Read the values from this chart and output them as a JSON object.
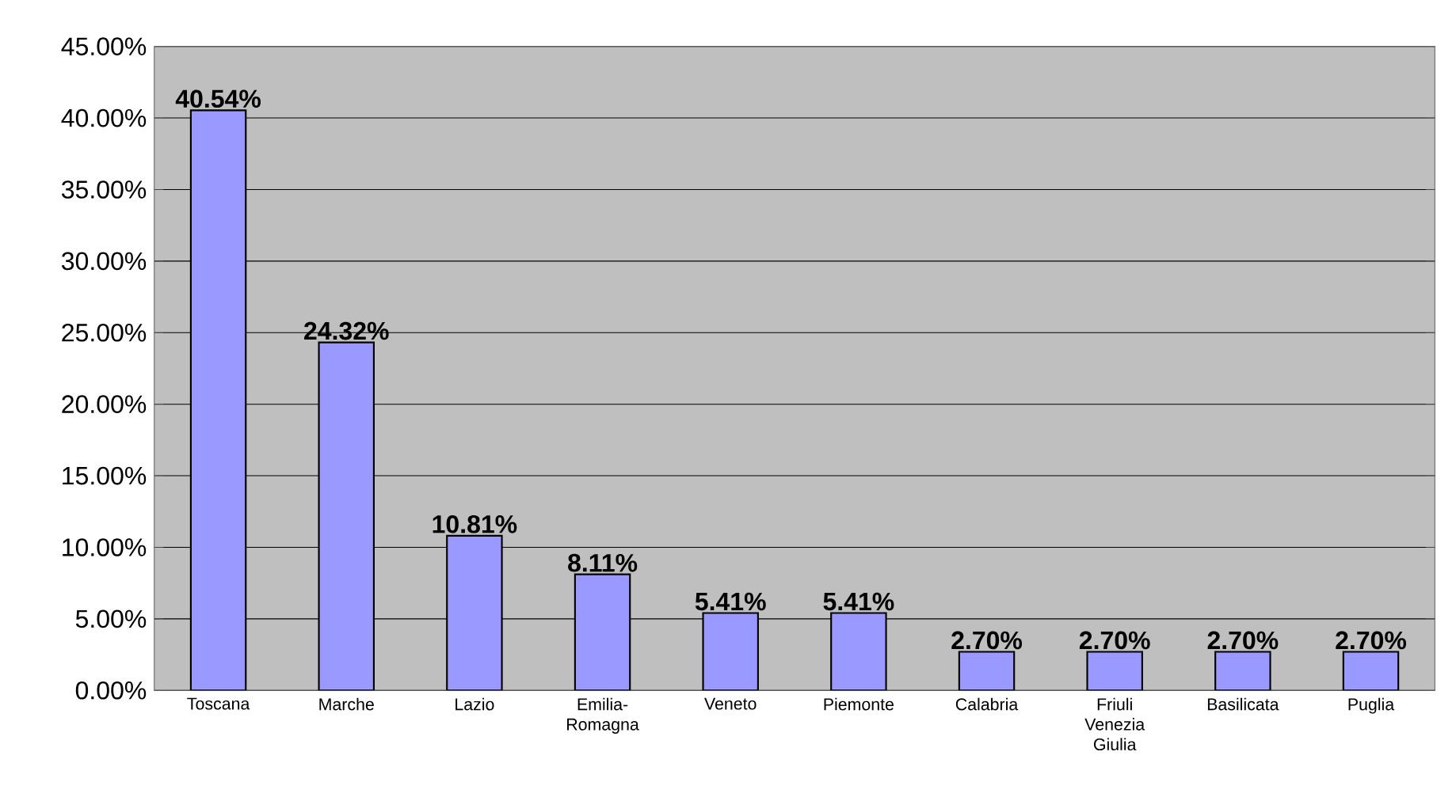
{
  "chart_data": {
    "type": "bar",
    "categories": [
      "Toscana",
      "Marche",
      "Lazio",
      "Emilia-Romagna",
      "Veneto",
      "Piemonte",
      "Calabria",
      "Friuli Venezia Giulia",
      "Basilicata",
      "Puglia"
    ],
    "values": [
      40.54,
      24.32,
      10.81,
      8.11,
      5.41,
      5.41,
      2.7,
      2.7,
      2.7,
      2.7
    ],
    "value_labels": [
      "40.54%",
      "24.32%",
      "10.81%",
      "8.11%",
      "5.41%",
      "5.41%",
      "2.70%",
      "2.70%",
      "2.70%",
      "2.70%"
    ],
    "color": "#9999ff",
    "ylim": [
      0,
      45
    ],
    "yticks": [
      {
        "value": 0,
        "label": "0.00%"
      },
      {
        "value": 5,
        "label": "5.00%"
      },
      {
        "value": 10,
        "label": "10.00%"
      },
      {
        "value": 15,
        "label": "15.00%"
      },
      {
        "value": 20,
        "label": "20.00%"
      },
      {
        "value": 25,
        "label": "25.00%"
      },
      {
        "value": 30,
        "label": "30.00%"
      },
      {
        "value": 35,
        "label": "35.00%"
      },
      {
        "value": 40,
        "label": "40.00%"
      },
      {
        "value": 45,
        "label": "45.00%"
      }
    ],
    "grid": "y"
  }
}
